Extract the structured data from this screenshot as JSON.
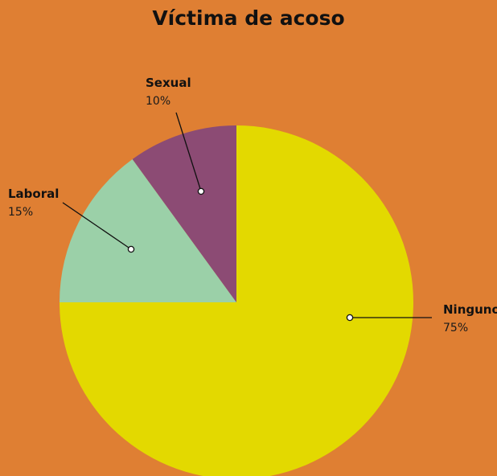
{
  "chart_data": {
    "type": "pie",
    "title": "Víctima de acoso",
    "slices": [
      {
        "label": "Ninguno",
        "value": 75,
        "value_label": "75%",
        "color": "#E3D900"
      },
      {
        "label": "Laboral",
        "value": 15,
        "value_label": "15%",
        "color": "#9BD0A8"
      },
      {
        "label": "Sexual",
        "value": 10,
        "value_label": "10%",
        "color": "#8C4B74"
      }
    ],
    "legend": "none",
    "start": "top",
    "direction": "clockwise"
  }
}
